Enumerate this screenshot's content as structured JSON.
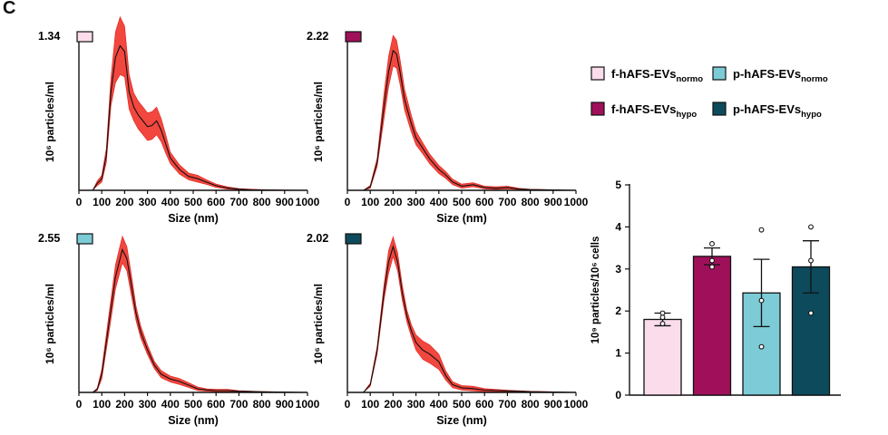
{
  "panel_label": "C",
  "size_panels": [
    {
      "peak": "1.34",
      "color": "#fbdcea",
      "ylabel": "10⁶ particles/ml",
      "xlabel": "Size (nm)"
    },
    {
      "peak": "2.22",
      "color": "#a0105a",
      "ylabel": "10⁶ particles/ml",
      "xlabel": "Size (nm)"
    },
    {
      "peak": "2.55",
      "color": "#7ccbd6",
      "ylabel": "10⁶ particles/ml",
      "xlabel": "Size (nm)"
    },
    {
      "peak": "2.02",
      "color": "#0d4a5c",
      "ylabel": "10⁶ particles/ml",
      "xlabel": "Size (nm)"
    }
  ],
  "legend": [
    {
      "base": "f-hAFS-EVs",
      "sub": "normo",
      "color": "#fbdcea"
    },
    {
      "base": "p-hAFS-EVs",
      "sub": "normo",
      "color": "#7ccbd6"
    },
    {
      "base": "f-hAFS-EVs",
      "sub": "hypo",
      "color": "#a0105a"
    },
    {
      "base": "p-hAFS-EVs",
      "sub": "hypo",
      "color": "#0d4a5c"
    }
  ],
  "chart_data": [
    {
      "type": "line",
      "series_label": "f-hAFS-EVs normo",
      "x": [
        60,
        80,
        100,
        120,
        140,
        160,
        180,
        200,
        220,
        240,
        260,
        280,
        300,
        320,
        340,
        360,
        380,
        400,
        440,
        480,
        520,
        560,
        600,
        650,
        700,
        750,
        800,
        900,
        1000
      ],
      "y": [
        0,
        0.06,
        0.1,
        0.3,
        0.85,
        1.15,
        1.25,
        1.2,
        0.85,
        0.72,
        0.65,
        0.6,
        0.55,
        0.56,
        0.6,
        0.52,
        0.4,
        0.28,
        0.18,
        0.12,
        0.1,
        0.07,
        0.04,
        0.02,
        0.01,
        0.005,
        0.003,
        0.001,
        0
      ],
      "err": [
        0,
        0.02,
        0.03,
        0.06,
        0.12,
        0.22,
        0.25,
        0.22,
        0.15,
        0.12,
        0.12,
        0.12,
        0.12,
        0.12,
        0.12,
        0.1,
        0.08,
        0.05,
        0.04,
        0.03,
        0.03,
        0.02,
        0.015,
        0.01,
        0.005,
        0.005,
        0.003,
        0.001,
        0
      ],
      "xlim": [
        0,
        1000
      ],
      "ylim": [
        0,
        1.34
      ],
      "xticks": [
        "0",
        "100",
        "200",
        "300",
        "400",
        "500",
        "600",
        "700",
        "800",
        "900",
        "1000"
      ],
      "xlabel": "Size (nm)",
      "ylabel": "10⁶ particles/ml"
    },
    {
      "type": "line",
      "series_label": "f-hAFS-EVs hypo",
      "x": [
        70,
        100,
        130,
        160,
        180,
        200,
        215,
        230,
        250,
        280,
        300,
        330,
        360,
        400,
        430,
        460,
        500,
        550,
        600,
        650,
        700,
        750,
        800,
        900,
        1000
      ],
      "y": [
        0,
        0.05,
        0.4,
        1.2,
        1.7,
        2.0,
        1.95,
        1.7,
        1.3,
        0.95,
        0.75,
        0.6,
        0.45,
        0.3,
        0.22,
        0.12,
        0.06,
        0.08,
        0.04,
        0.03,
        0.04,
        0.02,
        0.01,
        0.005,
        0
      ],
      "err": [
        0,
        0.02,
        0.06,
        0.18,
        0.22,
        0.22,
        0.2,
        0.18,
        0.15,
        0.12,
        0.1,
        0.08,
        0.07,
        0.06,
        0.05,
        0.04,
        0.03,
        0.03,
        0.02,
        0.02,
        0.02,
        0.01,
        0.005,
        0.003,
        0
      ],
      "xlim": [
        0,
        1000
      ],
      "ylim": [
        0,
        2.22
      ],
      "xticks": [
        "0",
        "100",
        "200",
        "300",
        "400",
        "500",
        "600",
        "700",
        "800",
        "900",
        "1000"
      ],
      "xlabel": "Size (nm)",
      "ylabel": "10⁶ particles/ml"
    },
    {
      "type": "line",
      "series_label": "p-hAFS-EVs normo",
      "x": [
        60,
        80,
        100,
        130,
        160,
        190,
        210,
        230,
        250,
        270,
        300,
        330,
        360,
        400,
        440,
        480,
        520,
        560,
        600,
        650,
        700,
        800,
        900,
        1000
      ],
      "y": [
        0,
        0.05,
        0.3,
        1.1,
        1.9,
        2.35,
        2.2,
        1.75,
        1.3,
        1.0,
        0.7,
        0.45,
        0.3,
        0.22,
        0.18,
        0.12,
        0.06,
        0.04,
        0.03,
        0.03,
        0.02,
        0.01,
        0.005,
        0
      ],
      "err": [
        0,
        0.02,
        0.08,
        0.15,
        0.2,
        0.22,
        0.2,
        0.17,
        0.12,
        0.1,
        0.08,
        0.06,
        0.06,
        0.05,
        0.05,
        0.04,
        0.03,
        0.02,
        0.02,
        0.02,
        0.01,
        0.005,
        0.003,
        0
      ],
      "xlim": [
        0,
        1000
      ],
      "ylim": [
        0,
        2.55
      ],
      "xticks": [
        "0",
        "100",
        "200",
        "300",
        "400",
        "500",
        "600",
        "700",
        "800",
        "900",
        "1000"
      ],
      "xlabel": "Size (nm)",
      "ylabel": "10⁶ particles/ml"
    },
    {
      "type": "line",
      "series_label": "p-hAFS-EVs hypo",
      "x": [
        70,
        100,
        130,
        160,
        180,
        200,
        220,
        240,
        260,
        280,
        300,
        330,
        360,
        400,
        430,
        460,
        500,
        550,
        600,
        700,
        800,
        900,
        1000
      ],
      "y": [
        0,
        0.1,
        0.55,
        1.3,
        1.7,
        1.9,
        1.7,
        1.3,
        1.0,
        0.8,
        0.65,
        0.55,
        0.5,
        0.4,
        0.22,
        0.1,
        0.06,
        0.05,
        0.03,
        0.02,
        0.01,
        0.005,
        0
      ],
      "err": [
        0,
        0.02,
        0.05,
        0.1,
        0.15,
        0.13,
        0.12,
        0.1,
        0.08,
        0.08,
        0.1,
        0.12,
        0.12,
        0.1,
        0.06,
        0.04,
        0.03,
        0.03,
        0.02,
        0.01,
        0.005,
        0.003,
        0
      ],
      "xlim": [
        0,
        1000
      ],
      "ylim": [
        0,
        2.02
      ],
      "xticks": [
        "0",
        "100",
        "200",
        "300",
        "400",
        "500",
        "600",
        "700",
        "800",
        "900",
        "1000"
      ],
      "xlabel": "Size (nm)",
      "ylabel": "10⁶ particles/ml"
    },
    {
      "type": "bar",
      "categories": [
        "f-hAFS-EVs normo",
        "f-hAFS-EVs hypo",
        "p-hAFS-EVs normo",
        "p-hAFS-EVs hypo"
      ],
      "values": [
        1.8,
        3.3,
        2.43,
        3.05
      ],
      "errors": [
        0.15,
        0.2,
        0.8,
        0.62
      ],
      "points": [
        [
          1.95,
          1.85,
          1.7
        ],
        [
          3.6,
          3.2,
          3.05
        ],
        [
          3.93,
          2.25,
          1.15
        ],
        [
          4.0,
          3.2,
          1.95
        ]
      ],
      "colors": [
        "#fbdcea",
        "#a0105a",
        "#7ccbd6",
        "#0d4a5c"
      ],
      "ylim": [
        0,
        5
      ],
      "yticks": [
        "0",
        "1",
        "2",
        "3",
        "4",
        "5"
      ],
      "ylabel": "10⁹ particles/10⁶ cells"
    }
  ]
}
